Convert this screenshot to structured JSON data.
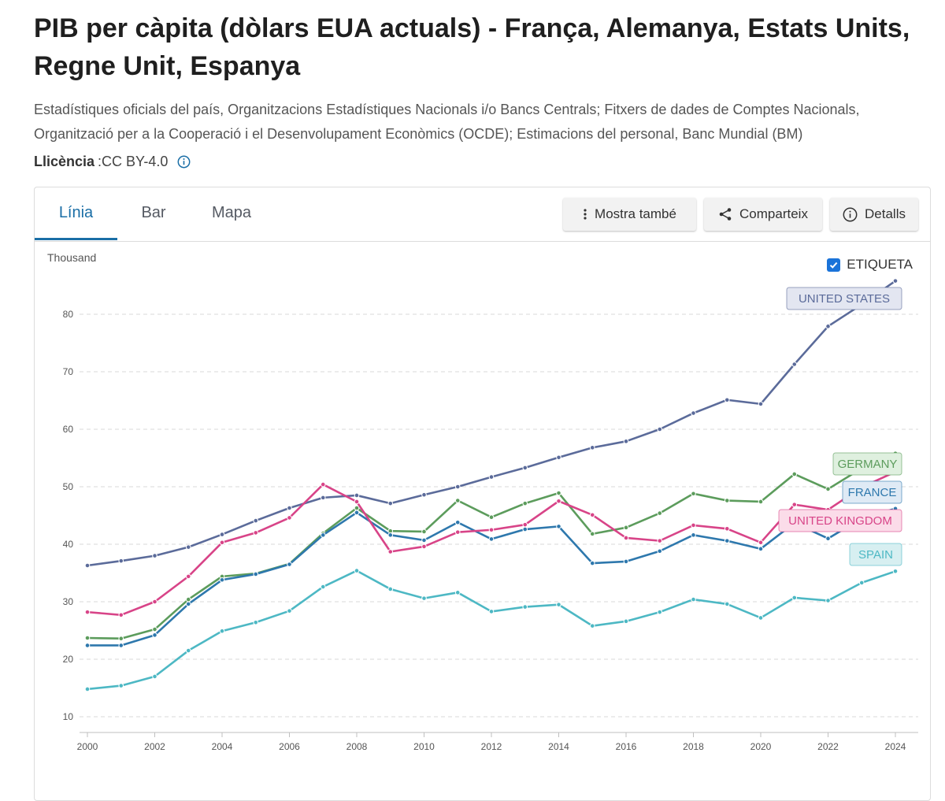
{
  "header": {
    "title": "PIB per càpita (dòlars EUA actuals) - França, Alemanya, Estats Units, Regne Unit, Espanya",
    "source": "Estadístiques oficials del país, Organitzacions Estadístiques Nacionals i/o Bancs Centrals; Fitxers de dades de Comptes Nacionals, Organització per a la Cooperació i el Desenvolupament Econòmics (OCDE); Estimacions del personal, Banc Mundial (BM)",
    "license_label": "Llicència",
    "license_value": ":CC BY-4.0",
    "info_icon": "info-circle-icon"
  },
  "tabs": [
    {
      "label": "Línia",
      "active": true
    },
    {
      "label": "Bar",
      "active": false
    },
    {
      "label": "Mapa",
      "active": false
    }
  ],
  "toolbar": {
    "show_also": {
      "label": "Mostra també",
      "icon": "more-vertical-icon"
    },
    "share": {
      "label": "Comparteix",
      "icon": "share-icon"
    },
    "details": {
      "label": "Detalls",
      "icon": "info-circle-icon"
    }
  },
  "chart_controls": {
    "unit_label": "Thousand",
    "label_toggle": {
      "label": "ETIQUETA",
      "checked": true
    }
  },
  "colors": {
    "united_states": "#5b6b9a",
    "germany": "#5c9c5c",
    "france": "#2e78ad",
    "united_kingdom": "#d84488",
    "spain": "#4db8c4",
    "accent": "#1a6ea6"
  },
  "chart_data": {
    "type": "line",
    "title": "",
    "xlabel": "",
    "ylabel": "Thousand",
    "x": [
      2000,
      2001,
      2002,
      2003,
      2004,
      2005,
      2006,
      2007,
      2008,
      2009,
      2010,
      2011,
      2012,
      2013,
      2014,
      2015,
      2016,
      2017,
      2018,
      2019,
      2020,
      2021,
      2022,
      2023,
      2024
    ],
    "xticks": [
      2000,
      2002,
      2004,
      2006,
      2008,
      2010,
      2012,
      2014,
      2016,
      2018,
      2020,
      2022,
      2024
    ],
    "yticks": [
      10,
      20,
      30,
      40,
      50,
      60,
      70,
      80
    ],
    "xlim": [
      2000,
      2024
    ],
    "ylim": [
      7.5,
      87
    ],
    "grid": "horizontal-dashed",
    "legend": "end-of-line labels",
    "series": [
      {
        "name": "UNITED STATES",
        "color": "#5b6b9a",
        "label_fill": "#e3e6f1",
        "values": [
          36.3,
          37.1,
          38.0,
          39.5,
          41.7,
          44.1,
          46.3,
          48.1,
          48.5,
          47.1,
          48.6,
          50.0,
          51.7,
          53.3,
          55.1,
          56.8,
          57.9,
          60.0,
          62.8,
          65.1,
          64.4,
          71.3,
          77.9,
          81.7,
          85.8
        ]
      },
      {
        "name": "GERMANY",
        "color": "#5c9c5c",
        "label_fill": "#dff0df",
        "values": [
          23.7,
          23.6,
          25.2,
          30.4,
          34.4,
          34.9,
          36.6,
          41.9,
          46.3,
          42.3,
          42.2,
          47.6,
          44.7,
          47.1,
          48.9,
          41.8,
          42.9,
          45.4,
          48.8,
          47.6,
          47.4,
          52.2,
          49.6,
          53.2,
          55.8
        ]
      },
      {
        "name": "FRANCE",
        "color": "#2e78ad",
        "label_fill": "#dfeaf5",
        "values": [
          22.4,
          22.4,
          24.2,
          29.6,
          33.8,
          34.8,
          36.5,
          41.6,
          45.5,
          41.6,
          40.7,
          43.8,
          40.9,
          42.6,
          43.1,
          36.7,
          37.0,
          38.8,
          41.6,
          40.6,
          39.2,
          43.7,
          41.0,
          44.5,
          46.2
        ]
      },
      {
        "name": "UNITED KINGDOM",
        "color": "#d84488",
        "label_fill": "#fbdce9",
        "values": [
          28.2,
          27.7,
          30.0,
          34.4,
          40.3,
          42.0,
          44.6,
          50.4,
          47.4,
          38.7,
          39.6,
          42.1,
          42.5,
          43.4,
          47.5,
          45.1,
          41.1,
          40.6,
          43.3,
          42.7,
          40.3,
          46.9,
          46.0,
          49.9,
          52.6
        ]
      },
      {
        "name": "SPAIN",
        "color": "#4db8c4",
        "label_fill": "#d7eff1",
        "values": [
          14.8,
          15.4,
          17.0,
          21.5,
          24.9,
          26.4,
          28.4,
          32.6,
          35.4,
          32.2,
          30.6,
          31.6,
          28.3,
          29.1,
          29.5,
          25.8,
          26.6,
          28.2,
          30.4,
          29.6,
          27.2,
          30.7,
          30.2,
          33.3,
          35.3
        ]
      }
    ]
  }
}
